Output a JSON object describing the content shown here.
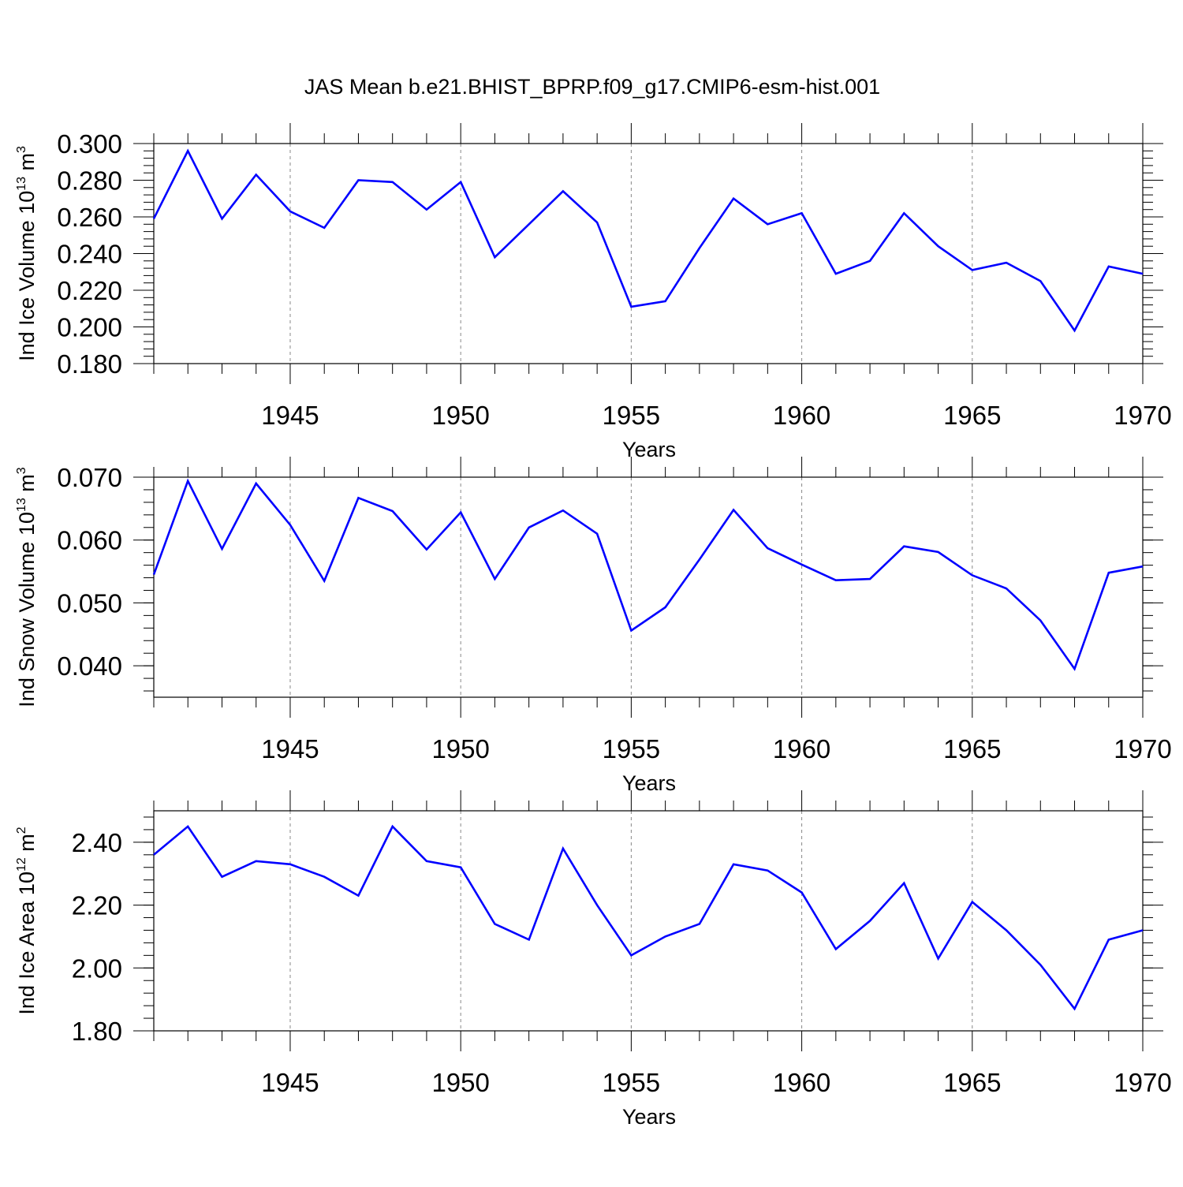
{
  "title": "JAS Mean b.e21.BHIST_BPRP.f09_g17.CMIP6-esm-hist.001",
  "line_color": "#0000ff",
  "chart_data": [
    {
      "type": "line",
      "ylabel": "Ind Ice Volume 10",
      "ylabel_exp": "13",
      "ylabel_unit": " m",
      "ylabel_unit_exp": "3",
      "xlabel": "Years",
      "xlim": [
        1941,
        1970
      ],
      "ylim": [
        0.18,
        0.3
      ],
      "yticks": [
        "0.180",
        "0.200",
        "0.220",
        "0.240",
        "0.260",
        "0.280",
        "0.300"
      ],
      "ytick_values": [
        0.18,
        0.2,
        0.22,
        0.24,
        0.26,
        0.28,
        0.3
      ],
      "xticks": [
        "1945",
        "1950",
        "1955",
        "1960",
        "1965",
        "1970"
      ],
      "xtick_values": [
        1945,
        1950,
        1955,
        1960,
        1965,
        1970
      ],
      "grid": "dashed vertical at major x ticks",
      "x": [
        1941,
        1942,
        1943,
        1944,
        1945,
        1946,
        1947,
        1948,
        1949,
        1950,
        1951,
        1952,
        1953,
        1954,
        1955,
        1956,
        1957,
        1958,
        1959,
        1960,
        1961,
        1962,
        1963,
        1964,
        1965,
        1966,
        1967,
        1968,
        1969,
        1970
      ],
      "series": [
        {
          "values": [
            0.259,
            0.296,
            0.259,
            0.283,
            0.263,
            0.254,
            0.28,
            0.279,
            0.264,
            0.279,
            0.238,
            0.256,
            0.274,
            0.257,
            0.211,
            0.214,
            0.243,
            0.27,
            0.256,
            0.262,
            0.229,
            0.236,
            0.262,
            0.244,
            0.231,
            0.235,
            0.225,
            0.198,
            0.233,
            0.229
          ]
        }
      ]
    },
    {
      "type": "line",
      "ylabel": "Ind Snow Volume 10",
      "ylabel_exp": "13",
      "ylabel_unit": " m",
      "ylabel_unit_exp": "3",
      "xlabel": "Years",
      "xlim": [
        1941,
        1970
      ],
      "ylim": [
        0.035,
        0.07
      ],
      "yticks": [
        "0.040",
        "0.050",
        "0.060",
        "0.070"
      ],
      "ytick_values": [
        0.04,
        0.05,
        0.06,
        0.07
      ],
      "xticks": [
        "1945",
        "1950",
        "1955",
        "1960",
        "1965",
        "1970"
      ],
      "xtick_values": [
        1945,
        1950,
        1955,
        1960,
        1965,
        1970
      ],
      "grid": "dashed vertical at major x ticks",
      "x": [
        1941,
        1942,
        1943,
        1944,
        1945,
        1946,
        1947,
        1948,
        1949,
        1950,
        1951,
        1952,
        1953,
        1954,
        1955,
        1956,
        1957,
        1958,
        1959,
        1960,
        1961,
        1962,
        1963,
        1964,
        1965,
        1966,
        1967,
        1968,
        1969,
        1970
      ],
      "series": [
        {
          "values": [
            0.0545,
            0.0694,
            0.0586,
            0.069,
            0.0624,
            0.0535,
            0.0667,
            0.0646,
            0.0585,
            0.0644,
            0.0538,
            0.062,
            0.0647,
            0.061,
            0.0456,
            0.0493,
            0.0569,
            0.0648,
            0.0587,
            0.0561,
            0.0536,
            0.0538,
            0.059,
            0.0581,
            0.0544,
            0.0523,
            0.0472,
            0.0395,
            0.0548,
            0.0558
          ]
        }
      ]
    },
    {
      "type": "line",
      "ylabel": "Ind Ice Area 10",
      "ylabel_exp": "12",
      "ylabel_unit": " m",
      "ylabel_unit_exp": "2",
      "xlabel": "Years",
      "xlim": [
        1941,
        1970
      ],
      "ylim": [
        1.8,
        2.5
      ],
      "yticks": [
        "1.80",
        "2.00",
        "2.20",
        "2.40"
      ],
      "ytick_values": [
        1.8,
        2.0,
        2.2,
        2.4
      ],
      "xticks": [
        "1945",
        "1950",
        "1955",
        "1960",
        "1965",
        "1970"
      ],
      "xtick_values": [
        1945,
        1950,
        1955,
        1960,
        1965,
        1970
      ],
      "grid": "dashed vertical at major x ticks",
      "x": [
        1941,
        1942,
        1943,
        1944,
        1945,
        1946,
        1947,
        1948,
        1949,
        1950,
        1951,
        1952,
        1953,
        1954,
        1955,
        1956,
        1957,
        1958,
        1959,
        1960,
        1961,
        1962,
        1963,
        1964,
        1965,
        1966,
        1967,
        1968,
        1969,
        1970
      ],
      "series": [
        {
          "values": [
            2.36,
            2.45,
            2.29,
            2.34,
            2.33,
            2.29,
            2.23,
            2.45,
            2.34,
            2.32,
            2.14,
            2.09,
            2.38,
            2.2,
            2.04,
            2.1,
            2.14,
            2.33,
            2.31,
            2.24,
            2.06,
            2.15,
            2.27,
            2.03,
            2.21,
            2.12,
            2.01,
            1.87,
            2.09,
            2.12
          ]
        }
      ]
    }
  ]
}
